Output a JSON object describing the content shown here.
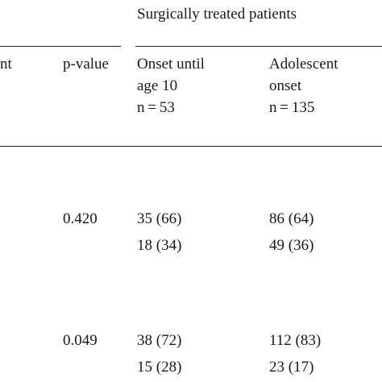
{
  "table": {
    "group_header": "Surgically treated patients",
    "left_clipped_header": "nt",
    "columns": {
      "pvalue": "p-value",
      "onset": {
        "line1": "Onset until",
        "line2": "age 10",
        "line3": "n = 53"
      },
      "adolescent": {
        "line1": "Adolescent",
        "line2": "onset",
        "line3": "n = 135"
      }
    },
    "rows": [
      {
        "pvalue": "0.420",
        "onset": "35 (66)",
        "adolescent": "86 (64)"
      },
      {
        "pvalue": "",
        "onset": "18 (34)",
        "adolescent": "49 (36)"
      },
      {
        "pvalue": "0.049",
        "onset": "38 (72)",
        "adolescent": "112 (83)"
      },
      {
        "pvalue": "",
        "onset": "15 (28)",
        "adolescent": "23 (17)"
      }
    ]
  }
}
